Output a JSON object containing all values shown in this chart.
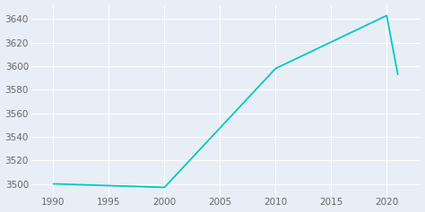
{
  "years": [
    1990,
    2000,
    2010,
    2020,
    2021
  ],
  "population": [
    3500,
    3497,
    3598,
    3643,
    3593
  ],
  "line_color": "#00c8c8",
  "background_color": "#e8eef5",
  "grid_color": "#ffffff",
  "tick_color": "#666666",
  "xlim": [
    1988,
    2023
  ],
  "ylim": [
    3490,
    3652
  ],
  "yticks": [
    3500,
    3520,
    3540,
    3560,
    3580,
    3600,
    3620,
    3640
  ],
  "xticks": [
    1990,
    1995,
    2000,
    2005,
    2010,
    2015,
    2020
  ],
  "line_width": 1.3,
  "tick_fontsize": 7.5
}
